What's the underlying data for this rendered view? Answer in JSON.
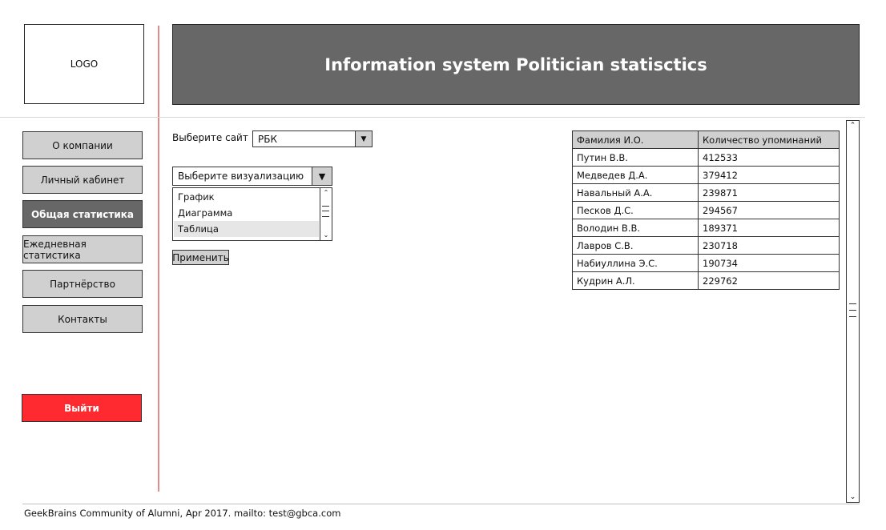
{
  "logo": {
    "label": "LOGO"
  },
  "header": {
    "title": "Information system Politician statisctics"
  },
  "nav": {
    "items": [
      {
        "label": "О компании",
        "active": false
      },
      {
        "label": "Личный кабинет",
        "active": false
      },
      {
        "label": "Общая статистика",
        "active": true
      },
      {
        "label": "Ежедневная статистика",
        "active": false
      },
      {
        "label": "Партнёрство",
        "active": false
      },
      {
        "label": "Контакты",
        "active": false
      }
    ],
    "logout_label": "Выйти"
  },
  "controls": {
    "site_label": "Выберите сайт",
    "site_value": "РБК",
    "viz_label": "Выберите визуализацию",
    "viz_options": [
      "График",
      "Диаграмма",
      "Таблица"
    ],
    "viz_selected": "Таблица",
    "apply_label": "Применить"
  },
  "table": {
    "headers": [
      "Фамилия И.О.",
      "Количество упоминаний"
    ],
    "rows": [
      {
        "name": "Путин В.В.",
        "count": "412533"
      },
      {
        "name": "Медведев Д.А.",
        "count": "379412"
      },
      {
        "name": "Навальный А.А.",
        "count": "239871"
      },
      {
        "name": "Песков Д.С.",
        "count": "294567"
      },
      {
        "name": "Володин В.В.",
        "count": "189371"
      },
      {
        "name": "Лавров С.В.",
        "count": "230718"
      },
      {
        "name": "Набиуллина Э.С.",
        "count": "190734"
      },
      {
        "name": "Кудрин А.Л.",
        "count": "229762"
      }
    ]
  },
  "footer": {
    "text": "GeekBrains Community of Alumni, Apr 2017. mailto: test@gbca.com"
  },
  "colors": {
    "header_bg": "#676767",
    "logout_bg": "#ff2a2f",
    "divider": "#e58a8a",
    "nav_bg": "#d0d0d0"
  }
}
